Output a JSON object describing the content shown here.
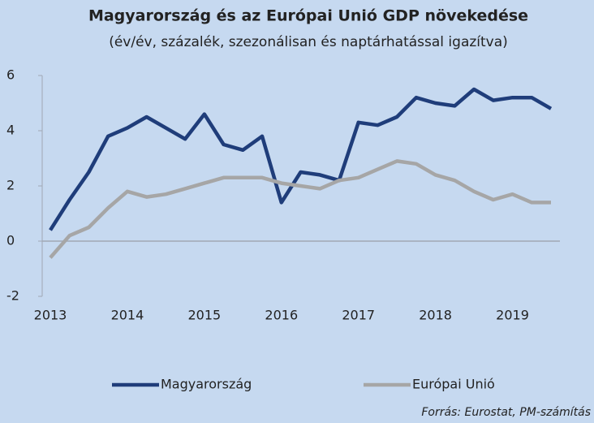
{
  "chart_data": {
    "type": "line",
    "title": "Magyarország és az Európai Unió GDP növekedése",
    "subtitle": "(év/év, százalék, szezonálisan és naptárhatással igazítva)",
    "source": "Forrás: Eurostat, PM-számítás",
    "x": [
      2013,
      2013.25,
      2013.5,
      2013.75,
      2014,
      2014.25,
      2014.5,
      2014.75,
      2015,
      2015.25,
      2015.5,
      2015.75,
      2016,
      2016.25,
      2016.5,
      2016.75,
      2017,
      2017.25,
      2017.5,
      2017.75,
      2018,
      2018.25,
      2018.5,
      2018.75,
      2019,
      2019.25,
      2019.5
    ],
    "series": [
      {
        "name": "Magyarország",
        "color": "#1f3d7a",
        "values": [
          0.4,
          1.5,
          2.5,
          3.8,
          4.1,
          4.5,
          4.1,
          3.7,
          4.6,
          3.5,
          3.3,
          3.8,
          1.4,
          2.5,
          2.4,
          2.2,
          4.3,
          4.2,
          4.5,
          5.2,
          5.0,
          4.9,
          5.5,
          5.1,
          5.2,
          5.2,
          4.8
        ]
      },
      {
        "name": "Európai Unió",
        "color": "#a6a6a6",
        "values": [
          -0.6,
          0.2,
          0.5,
          1.2,
          1.8,
          1.6,
          1.7,
          1.9,
          2.1,
          2.3,
          2.3,
          2.3,
          2.1,
          2.0,
          1.9,
          2.2,
          2.3,
          2.6,
          2.9,
          2.8,
          2.4,
          2.2,
          1.8,
          1.5,
          1.7,
          1.4,
          1.4
        ]
      }
    ],
    "xlim": [
      2013,
      2019.5
    ],
    "xticks": [
      2013,
      2014,
      2015,
      2016,
      2017,
      2018,
      2019
    ],
    "ylim": [
      -2,
      6
    ],
    "yticks": [
      -2,
      0,
      2,
      4,
      6
    ],
    "legend": "bottom"
  }
}
